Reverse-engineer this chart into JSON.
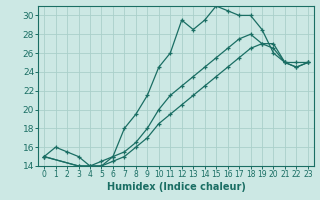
{
  "xlabel": "Humidex (Indice chaleur)",
  "bg_color": "#cce8e4",
  "line_color": "#1a6e64",
  "grid_color": "#aad0ca",
  "spine_color": "#1a6e64",
  "xlim": [
    -0.5,
    23.5
  ],
  "ylim": [
    14,
    31
  ],
  "xticks": [
    0,
    1,
    2,
    3,
    4,
    5,
    6,
    7,
    8,
    9,
    10,
    11,
    12,
    13,
    14,
    15,
    16,
    17,
    18,
    19,
    20,
    21,
    22,
    23
  ],
  "yticks": [
    14,
    16,
    18,
    20,
    22,
    24,
    26,
    28,
    30
  ],
  "line1_x": [
    0,
    1,
    2,
    3,
    4,
    5,
    6,
    7,
    8,
    9,
    10,
    11,
    12,
    13,
    14,
    15,
    16,
    17,
    18,
    19,
    20,
    21,
    22,
    23
  ],
  "line1_y": [
    15.0,
    16.0,
    15.5,
    15.0,
    14.0,
    14.5,
    15.0,
    18.0,
    19.5,
    21.5,
    24.5,
    26.0,
    29.5,
    28.5,
    29.5,
    31.0,
    30.5,
    30.0,
    30.0,
    28.5,
    26.0,
    25.0,
    24.5,
    25.0
  ],
  "line2_x": [
    0,
    3,
    4,
    5,
    6,
    7,
    8,
    9,
    10,
    11,
    12,
    13,
    14,
    15,
    16,
    17,
    18,
    19,
    20,
    21,
    22,
    23
  ],
  "line2_y": [
    15.0,
    14.0,
    14.0,
    14.0,
    15.0,
    15.5,
    16.5,
    18.0,
    20.0,
    21.5,
    22.5,
    23.5,
    24.5,
    25.5,
    26.5,
    27.5,
    28.0,
    27.0,
    27.0,
    25.0,
    25.0,
    25.0
  ],
  "line3_x": [
    0,
    3,
    4,
    5,
    6,
    7,
    8,
    9,
    10,
    11,
    12,
    13,
    14,
    15,
    16,
    17,
    18,
    19,
    20,
    21,
    22,
    23
  ],
  "line3_y": [
    15.0,
    14.0,
    14.0,
    14.0,
    14.5,
    15.0,
    16.0,
    17.0,
    18.5,
    19.5,
    20.5,
    21.5,
    22.5,
    23.5,
    24.5,
    25.5,
    26.5,
    27.0,
    26.5,
    25.0,
    24.5,
    25.0
  ],
  "xlabel_fontsize": 7,
  "tick_fontsize": 5.5,
  "ytick_fontsize": 6.5
}
